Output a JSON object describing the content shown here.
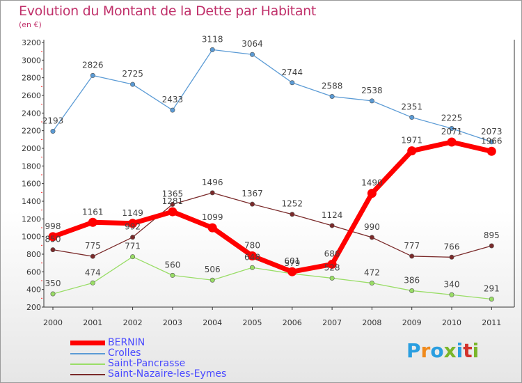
{
  "title": "Evolution du Montant de la Dette par Habitant",
  "subtitle": "(en €)",
  "logo": {
    "text": "Proxiti",
    "colors": [
      "#2a9ee0",
      "#f08a1c",
      "#2a9ee0",
      "#7ab62a",
      "#2a9ee0",
      "#d2322c",
      "#7ab62a"
    ]
  },
  "chart_data": {
    "type": "line",
    "title": "Evolution du Montant de la Dette par Habitant",
    "subtitle": "(en €)",
    "x": [
      "2000",
      "2001",
      "2002",
      "2003",
      "2004",
      "2005",
      "2006",
      "2007",
      "2008",
      "2009",
      "2010",
      "2011"
    ],
    "ylim": [
      200,
      3200
    ],
    "yticks": [
      200,
      400,
      600,
      800,
      1000,
      1200,
      1400,
      1600,
      1800,
      2000,
      2200,
      2400,
      2600,
      2800,
      3000,
      3200
    ],
    "grid": false,
    "legend_position": "bottom-left",
    "series": [
      {
        "name": "BERNIN",
        "color": "#ff0000",
        "values": [
          998,
          1161,
          1149,
          1281,
          1099,
          780,
          601,
          686,
          1490,
          1971,
          2071,
          1966
        ]
      },
      {
        "name": "Crolles",
        "color": "#5b9bd5",
        "values": [
          2193,
          2826,
          2725,
          2433,
          3118,
          3064,
          2744,
          2588,
          2538,
          2351,
          2225,
          2073
        ]
      },
      {
        "name": "Saint-Pancrasse",
        "color": "#99dd66",
        "values": [
          350,
          474,
          771,
          560,
          506,
          648,
          579,
          528,
          472,
          386,
          340,
          291
        ]
      },
      {
        "name": "Saint-Nazaire-les-Eymes",
        "color": "#7a2a2a",
        "values": [
          850,
          775,
          992,
          1365,
          1496,
          1367,
          1252,
          1124,
          990,
          777,
          766,
          895
        ]
      }
    ]
  }
}
